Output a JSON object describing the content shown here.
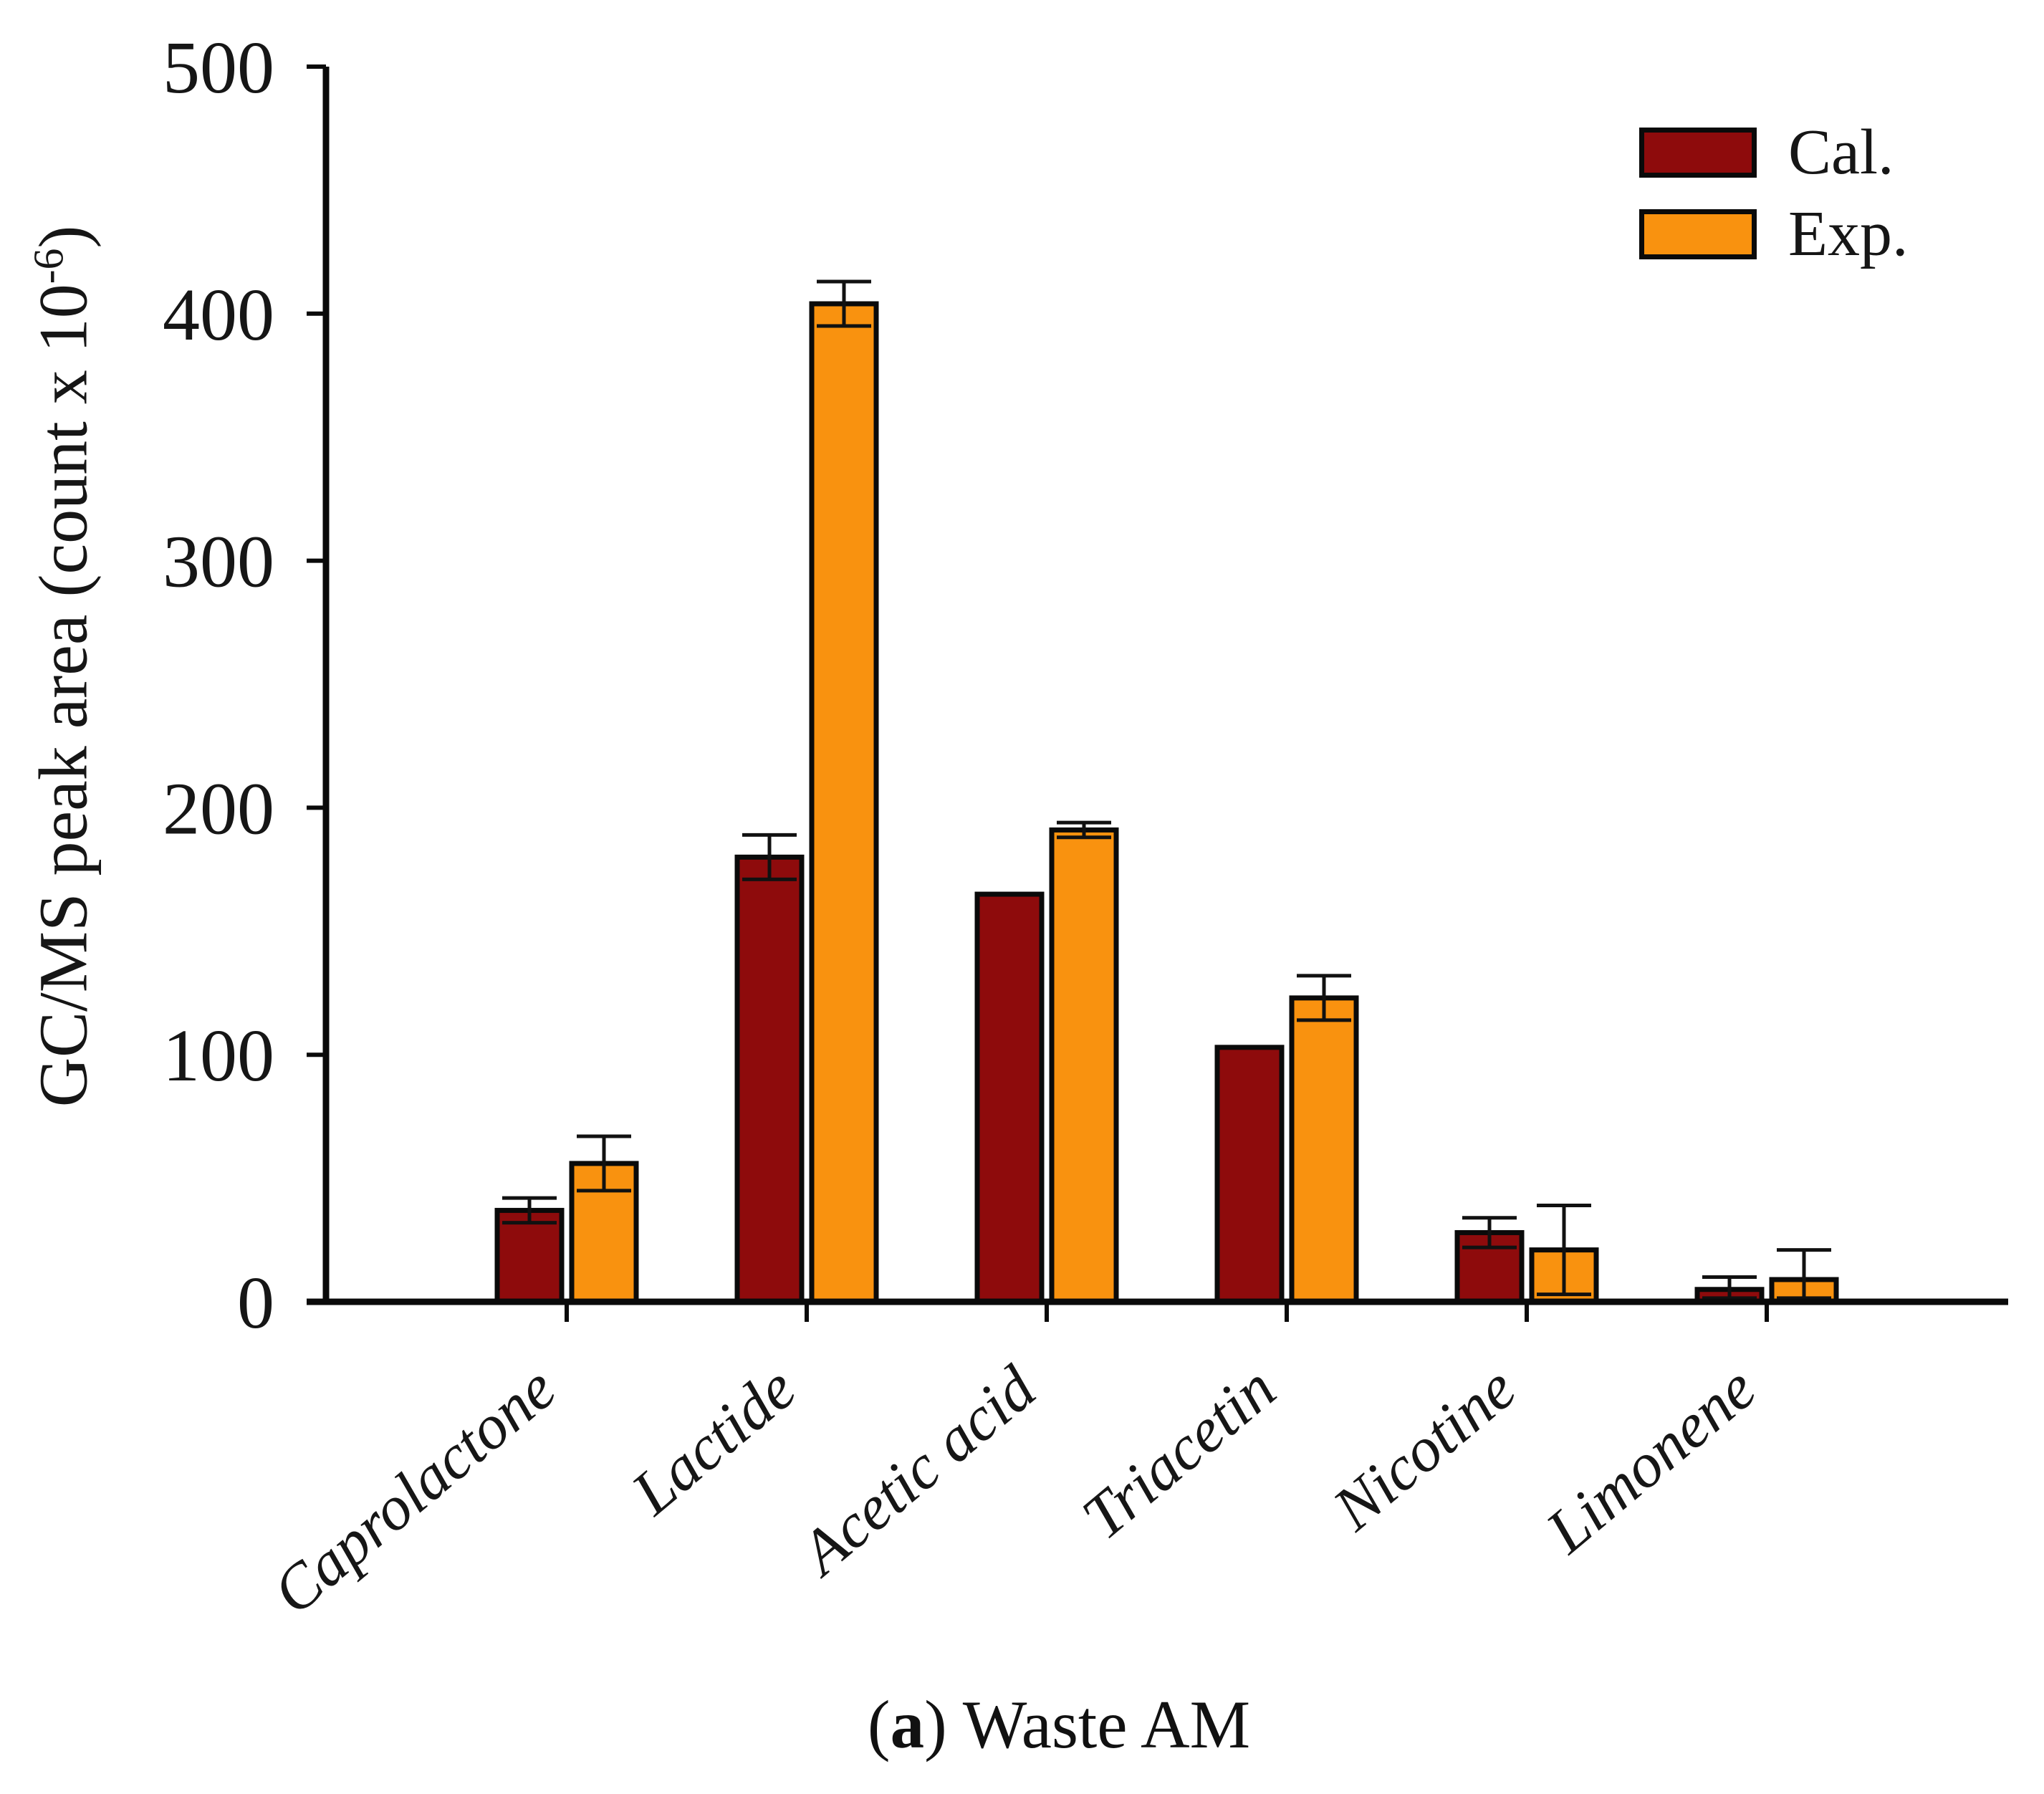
{
  "figure": {
    "caption": {
      "open": "(",
      "letter": "a",
      "rest": ") Waste AM"
    }
  },
  "y_axis": {
    "title_prefix": "GC/MS peak area (count x 10",
    "title_sup": "-6",
    "title_suffix": ")"
  },
  "legend": {
    "items": [
      {
        "label": "Cal.",
        "color": "#8E0B0C"
      },
      {
        "label": "Exp.",
        "color": "#F9920F"
      }
    ]
  },
  "chart_data": {
    "type": "bar",
    "title": "(a) Waste AM",
    "xlabel": "",
    "ylabel": "GC/MS peak area (count x 10^-6)",
    "ylim": [
      0,
      500
    ],
    "y_ticks": [
      0,
      100,
      200,
      300,
      400,
      500
    ],
    "grid": false,
    "legend_position": "top-right",
    "error_bars": true,
    "categories": [
      "Caprolactone",
      "Lactide",
      "Acetic acid",
      "Triacetin",
      "Nicotine",
      "Limonene"
    ],
    "series": [
      {
        "name": "Cal.",
        "color": "#8E0B0C",
        "values": [
          37,
          180,
          165,
          103,
          28,
          5
        ],
        "errors": [
          5,
          9,
          0,
          0,
          6,
          5
        ]
      },
      {
        "name": "Exp.",
        "color": "#F9920F",
        "values": [
          56,
          404,
          191,
          123,
          21,
          9
        ],
        "errors": [
          11,
          9,
          3,
          9,
          18,
          12
        ]
      }
    ]
  }
}
